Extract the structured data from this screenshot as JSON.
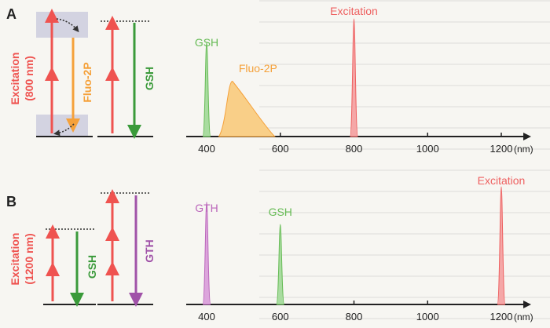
{
  "panel_a": {
    "letter": "A",
    "excitation_label": [
      "Excitation",
      "(800 nm)"
    ],
    "emission1_label": "Fluo-2P",
    "emission2_label": "GSH",
    "axis_ticks": [
      "400",
      "600",
      "800",
      "1000",
      "1200"
    ],
    "axis_unit": "(nm)",
    "peaks": [
      {
        "label": "GSH",
        "center": 400,
        "height": 0.8,
        "kind": "narrow",
        "color": "#66bb55",
        "fill": "#a9dca0"
      },
      {
        "label": "Fluo-2P",
        "center": 470,
        "height": 0.47,
        "kind": "broad",
        "color": "#f5a13a",
        "fill": "#f9cf88"
      },
      {
        "label": "Excitation",
        "center": 800,
        "height": 1.0,
        "kind": "narrow",
        "color": "#ee6060",
        "fill": "#f5a7a7"
      }
    ]
  },
  "panel_b": {
    "letter": "B",
    "excitation_label": [
      "Excitation",
      "(1200 nm)"
    ],
    "emission1_label": "GSH",
    "emission2_label": "GTH",
    "axis_ticks": [
      "400",
      "600",
      "800",
      "1000",
      "1200"
    ],
    "axis_unit": "(nm)",
    "peaks": [
      {
        "label": "GTH",
        "center": 400,
        "height": 0.87,
        "kind": "narrow",
        "color": "#bb66bb",
        "fill": "#dca5dc"
      },
      {
        "label": "GSH",
        "center": 600,
        "height": 0.68,
        "kind": "narrow",
        "color": "#66bb55",
        "fill": "#a9dca0"
      },
      {
        "label": "Excitation",
        "center": 1200,
        "height": 1.0,
        "kind": "narrow",
        "color": "#ee6060",
        "fill": "#f5a7a7"
      }
    ]
  },
  "colors": {
    "red": "#ef5350",
    "green": "#3a9a3a",
    "orange": "#f5a13a",
    "purple": "#a052a8",
    "axis": "#222222",
    "box": "#c9cbdc"
  }
}
